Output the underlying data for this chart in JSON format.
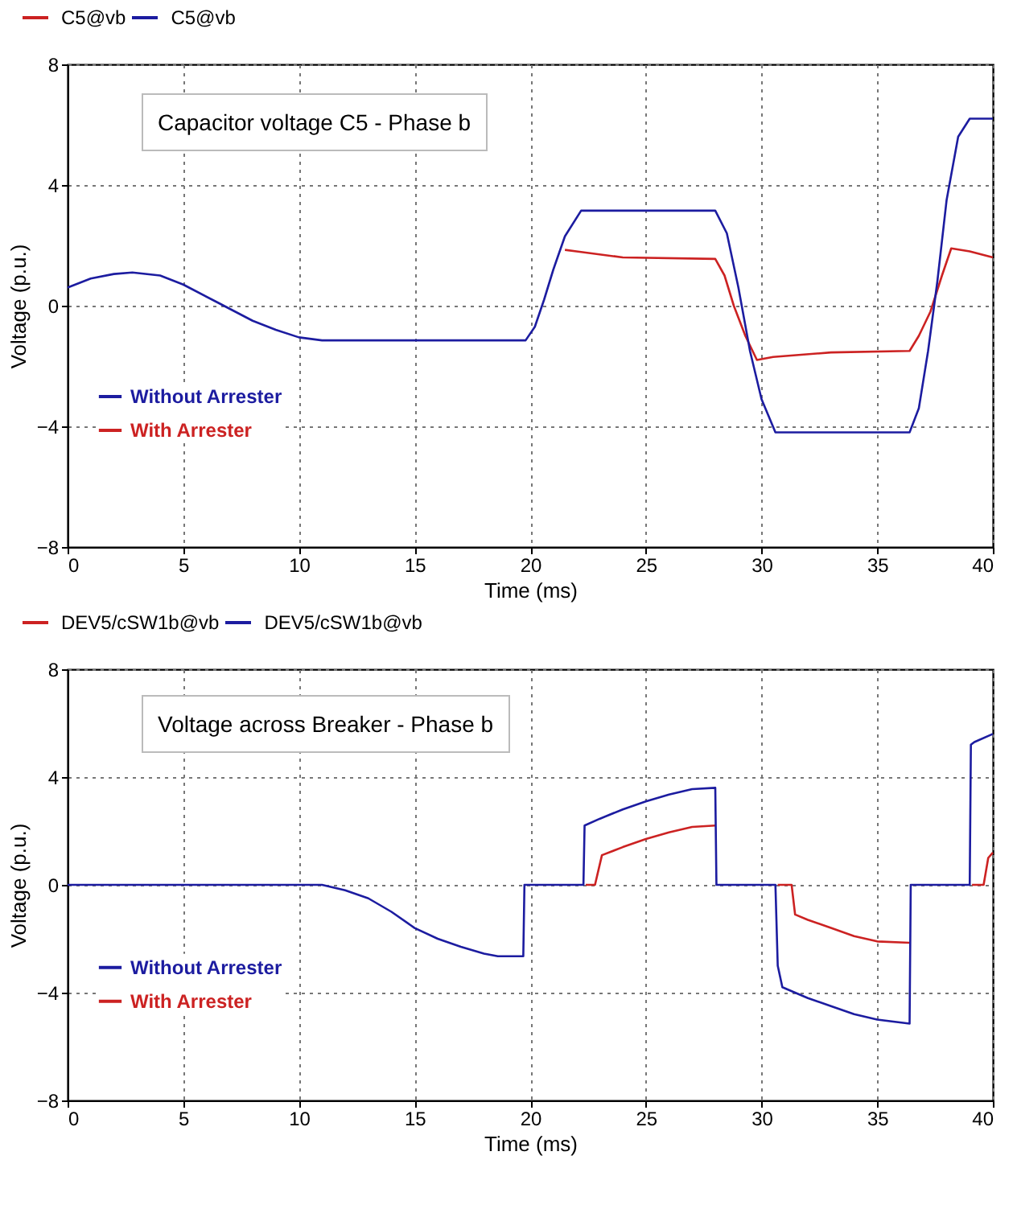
{
  "chart_data": [
    {
      "type": "line",
      "title": "Capacitor voltage C5 - Phase b",
      "xlabel": "Time (ms)",
      "ylabel": "Voltage (p.u.)",
      "annotations": [
        "C5@vb",
        "C5@vb"
      ],
      "xlim": [
        0,
        40
      ],
      "ylim": [
        -8,
        8
      ],
      "xticks": [
        0,
        5,
        10,
        15,
        20,
        25,
        30,
        35,
        40
      ],
      "yticks": [
        -8,
        -4,
        0,
        4,
        8
      ],
      "grid": true,
      "legend": "left",
      "line_style": "solid",
      "marker": "none",
      "series": [
        {
          "name": "Without Arrester",
          "color": "#1c1ca0",
          "x": [
            0,
            1,
            2,
            2.8,
            4,
            5,
            6.5,
            8,
            9,
            10,
            11,
            19.8,
            20.2,
            20.6,
            21,
            21.5,
            22.2,
            28,
            28.5,
            29,
            29.5,
            30,
            30.6,
            36.4,
            36.8,
            37.2,
            37.6,
            38,
            38.5,
            39,
            40
          ],
          "values": [
            0.6,
            0.9,
            1.05,
            1.1,
            1.0,
            0.7,
            0.1,
            -0.5,
            -0.8,
            -1.05,
            -1.15,
            -1.15,
            -0.7,
            0.2,
            1.2,
            2.3,
            3.15,
            3.15,
            2.4,
            0.6,
            -1.5,
            -3.1,
            -4.2,
            -4.2,
            -3.4,
            -1.5,
            0.8,
            3.5,
            5.6,
            6.2,
            6.2
          ]
        },
        {
          "name": "With Arrester",
          "color": "#cc2222",
          "x": [
            21.5,
            22,
            24,
            28,
            28.4,
            28.8,
            29.3,
            29.8,
            30.5,
            33,
            36.4,
            36.8,
            37.3,
            37.8,
            38.2,
            39,
            40
          ],
          "values": [
            1.85,
            1.8,
            1.6,
            1.55,
            1.0,
            0.0,
            -1.0,
            -1.8,
            -1.7,
            -1.55,
            -1.5,
            -1.0,
            -0.2,
            1.0,
            1.9,
            1.8,
            1.6
          ]
        }
      ]
    },
    {
      "type": "line",
      "title": "Voltage across Breaker - Phase b",
      "xlabel": "Time (ms)",
      "ylabel": "Voltage (p.u.)",
      "annotations": [
        "DEV5/cSW1b@vb",
        "DEV5/cSW1b@vb"
      ],
      "xlim": [
        0,
        40
      ],
      "ylim": [
        -8,
        8
      ],
      "xticks": [
        0,
        5,
        10,
        15,
        20,
        25,
        30,
        35,
        40
      ],
      "yticks": [
        -8,
        -4,
        0,
        4,
        8
      ],
      "grid": true,
      "legend": "left",
      "line_style": "solid",
      "marker": "none",
      "series": [
        {
          "name": "Without Arrester",
          "color": "#1c1ca0",
          "x": [
            0,
            11,
            12,
            13,
            14,
            15,
            16,
            17,
            18,
            18.6,
            19.7,
            19.75,
            22.3,
            22.35,
            23,
            24,
            25,
            26,
            27,
            28,
            28.05,
            30.6,
            30.7,
            30.9,
            32,
            33,
            34,
            35,
            36.4,
            36.45,
            39.0,
            39.05,
            39.2,
            40
          ],
          "values": [
            0,
            0,
            -0.2,
            -0.5,
            -1.0,
            -1.6,
            -2.0,
            -2.3,
            -2.55,
            -2.65,
            -2.65,
            0,
            0,
            2.2,
            2.45,
            2.8,
            3.1,
            3.35,
            3.55,
            3.6,
            0,
            0,
            -3.0,
            -3.8,
            -4.2,
            -4.5,
            -4.8,
            -5.0,
            -5.15,
            0,
            0,
            5.2,
            5.3,
            5.6
          ]
        },
        {
          "name": "With Arrester",
          "color": "#cc2222",
          "x": [
            22.4,
            22.8,
            23.1,
            24,
            25,
            26,
            27,
            28,
            28.05,
            30.7,
            31.3,
            31.45,
            32,
            33,
            34,
            35,
            36.4,
            36.45,
            39.1,
            39.6,
            39.8,
            40
          ],
          "values": [
            0,
            0,
            1.1,
            1.4,
            1.7,
            1.95,
            2.15,
            2.2,
            null,
            0,
            0,
            -1.1,
            -1.3,
            -1.6,
            -1.9,
            -2.1,
            -2.15,
            null,
            0,
            0,
            1.0,
            1.2
          ]
        }
      ]
    }
  ]
}
